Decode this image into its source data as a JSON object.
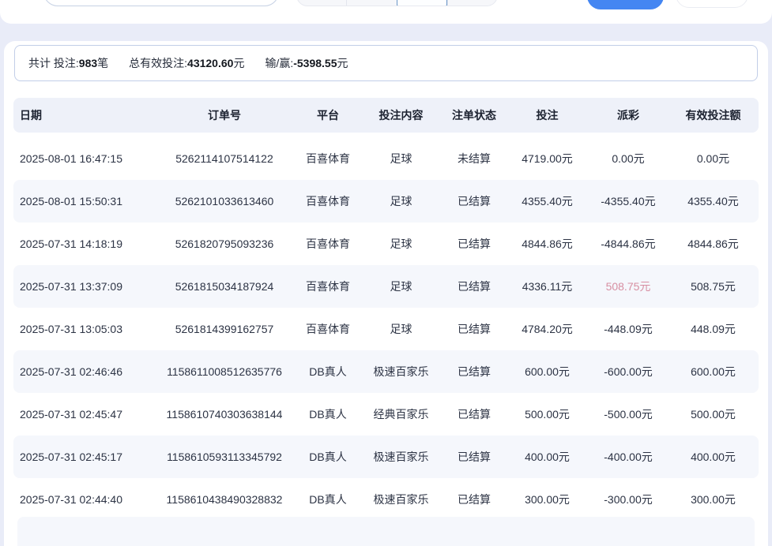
{
  "colors": {
    "accent_blue": "#4486f2",
    "positive_payout_red": "#d78fa2",
    "header_band": "#eef1f9",
    "alt_row": "#f5f7fc",
    "page_background": "#e9ecf8"
  },
  "summary": {
    "items": [
      {
        "label": "共计 投注:",
        "value": "983",
        "suffix": "笔"
      },
      {
        "label": "总有效投注:",
        "value": "43120.60",
        "suffix": "元"
      },
      {
        "label": "输/赢:",
        "value": "-5398.55",
        "suffix": "元"
      }
    ]
  },
  "table": {
    "columns": [
      {
        "key": "date",
        "label": "日期"
      },
      {
        "key": "order",
        "label": "订单号"
      },
      {
        "key": "platform",
        "label": "平台"
      },
      {
        "key": "content",
        "label": "投注内容"
      },
      {
        "key": "status",
        "label": "注单状态"
      },
      {
        "key": "bet",
        "label": "投注"
      },
      {
        "key": "payout",
        "label": "派彩"
      },
      {
        "key": "valid",
        "label": "有效投注额"
      }
    ],
    "rows": [
      {
        "date": "2025-08-01 16:47:15",
        "order": "5262114107514122",
        "platform": "百喜体育",
        "content": "足球",
        "status": "未结算",
        "bet": "4719.00元",
        "payout": "0.00元",
        "valid": "0.00元",
        "payout_positive": false
      },
      {
        "date": "2025-08-01 15:50:31",
        "order": "5262101033613460",
        "platform": "百喜体育",
        "content": "足球",
        "status": "已结算",
        "bet": "4355.40元",
        "payout": "-4355.40元",
        "valid": "4355.40元",
        "payout_positive": false
      },
      {
        "date": "2025-07-31 14:18:19",
        "order": "5261820795093236",
        "platform": "百喜体育",
        "content": "足球",
        "status": "已结算",
        "bet": "4844.86元",
        "payout": "-4844.86元",
        "valid": "4844.86元",
        "payout_positive": false
      },
      {
        "date": "2025-07-31 13:37:09",
        "order": "5261815034187924",
        "platform": "百喜体育",
        "content": "足球",
        "status": "已结算",
        "bet": "4336.11元",
        "payout": "508.75元",
        "valid": "508.75元",
        "payout_positive": true
      },
      {
        "date": "2025-07-31 13:05:03",
        "order": "5261814399162757",
        "platform": "百喜体育",
        "content": "足球",
        "status": "已结算",
        "bet": "4784.20元",
        "payout": "-448.09元",
        "valid": "448.09元",
        "payout_positive": false
      },
      {
        "date": "2025-07-31 02:46:46",
        "order": "1158611008512635776",
        "platform": "DB真人",
        "content": "极速百家乐",
        "status": "已结算",
        "bet": "600.00元",
        "payout": "-600.00元",
        "valid": "600.00元",
        "payout_positive": false
      },
      {
        "date": "2025-07-31 02:45:47",
        "order": "1158610740303638144",
        "platform": "DB真人",
        "content": "经典百家乐",
        "status": "已结算",
        "bet": "500.00元",
        "payout": "-500.00元",
        "valid": "500.00元",
        "payout_positive": false
      },
      {
        "date": "2025-07-31 02:45:17",
        "order": "1158610593113345792",
        "platform": "DB真人",
        "content": "极速百家乐",
        "status": "已结算",
        "bet": "400.00元",
        "payout": "-400.00元",
        "valid": "400.00元",
        "payout_positive": false
      },
      {
        "date": "2025-07-31 02:44:40",
        "order": "1158610438490328832",
        "platform": "DB真人",
        "content": "极速百家乐",
        "status": "已结算",
        "bet": "300.00元",
        "payout": "-300.00元",
        "valid": "300.00元",
        "payout_positive": false
      }
    ]
  }
}
